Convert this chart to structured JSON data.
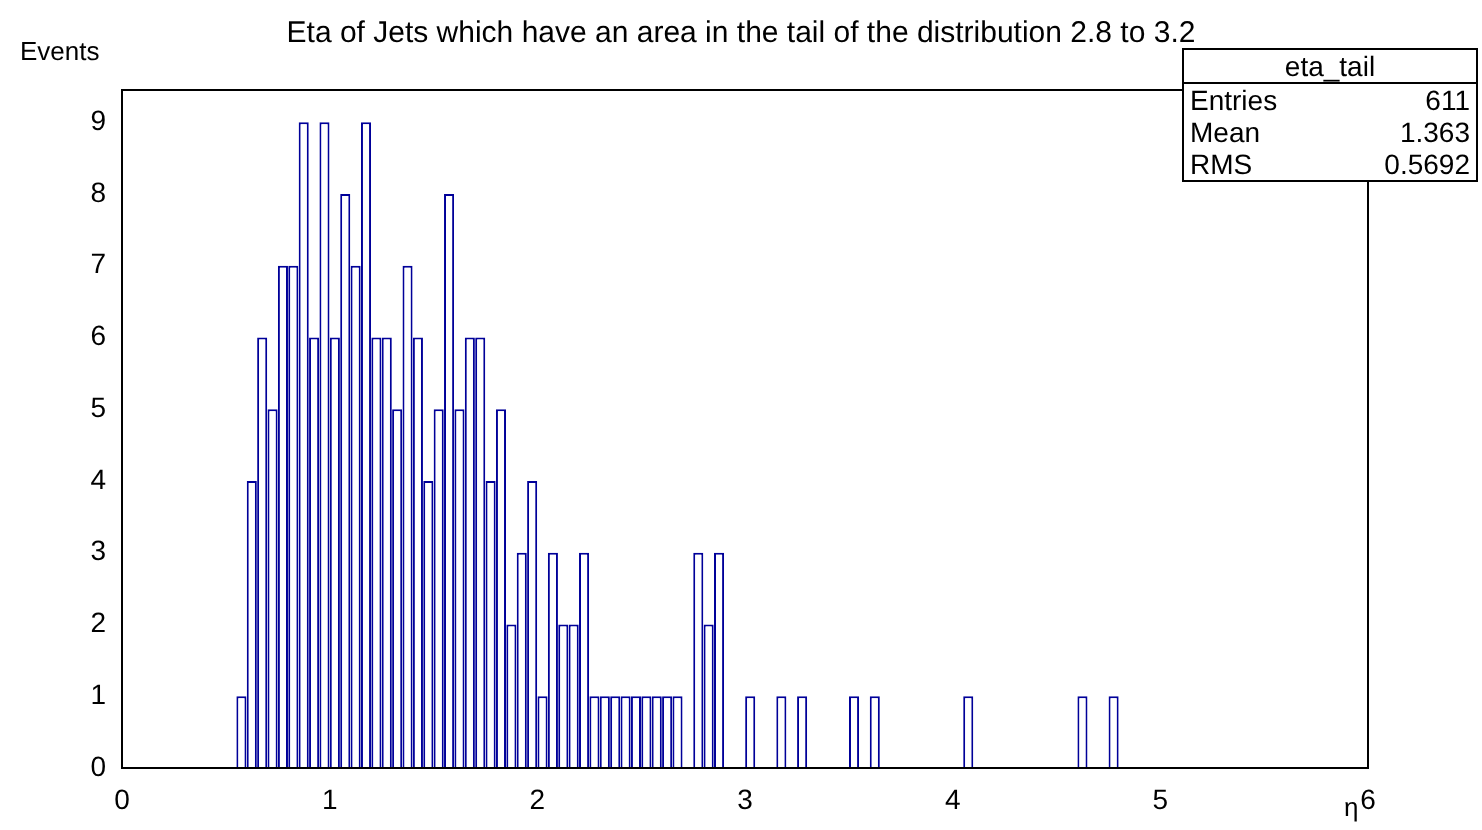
{
  "chart_data": {
    "type": "histogram",
    "title": "Eta of Jets which have an area in the tail of the distribution 2.8 to 3.2",
    "xlabel": "η",
    "ylabel": "Events",
    "bins": [
      0.55,
      0.6,
      0.65,
      0.7,
      0.75,
      0.8,
      0.85,
      0.9,
      0.95,
      1.0,
      1.05,
      1.1,
      1.15,
      1.2,
      1.25,
      1.3,
      1.35,
      1.4,
      1.45,
      1.5,
      1.55,
      1.6,
      1.65,
      1.7,
      1.75,
      1.8,
      1.85,
      1.9,
      1.95,
      2.0,
      2.05,
      2.1,
      2.15,
      2.2,
      2.25,
      2.3,
      2.35,
      2.4,
      2.45,
      2.5,
      2.55,
      2.6,
      2.65,
      2.7,
      2.75,
      2.8,
      2.85,
      2.9,
      2.95,
      3.0,
      3.05,
      3.1,
      3.15,
      3.2,
      3.25,
      3.3,
      3.35,
      3.4,
      3.45,
      3.5,
      3.55,
      3.6,
      3.65,
      3.7,
      3.75,
      3.8,
      3.85,
      3.9,
      3.95,
      4.0,
      4.05,
      4.1,
      4.15,
      4.2,
      4.25,
      4.3,
      4.35,
      4.4,
      4.45,
      4.5,
      4.55,
      4.6,
      4.65,
      4.7,
      4.75,
      4.8
    ],
    "values": [
      1,
      4,
      6,
      5,
      7,
      7,
      9,
      6,
      9,
      6,
      8,
      7,
      9,
      6,
      6,
      5,
      7,
      6,
      4,
      5,
      8,
      5,
      6,
      6,
      4,
      5,
      2,
      3,
      4,
      1,
      3,
      2,
      2,
      3,
      1,
      1,
      1,
      1,
      1,
      1,
      1,
      1,
      1,
      0,
      3,
      2,
      3,
      0,
      0,
      1,
      0,
      0,
      1,
      0,
      1,
      0,
      0,
      0,
      0,
      1,
      0,
      1,
      0,
      0,
      0,
      0,
      0,
      0,
      0,
      0,
      1,
      0,
      0,
      0,
      0,
      0,
      0,
      0,
      0,
      0,
      0,
      1,
      0,
      0,
      1
    ],
    "color": "#000099",
    "xlim": [
      0,
      6
    ],
    "xticks": [
      0,
      1,
      2,
      3,
      4,
      5,
      6
    ],
    "ylim": [
      0,
      9.45
    ],
    "yticks": [
      0,
      1,
      2,
      3,
      4,
      5,
      6,
      7,
      8,
      9
    ],
    "grid": false,
    "annotations": [
      "eta_tail",
      "Entries 611",
      "Mean 1.363",
      "RMS 0.5692"
    ]
  }
}
